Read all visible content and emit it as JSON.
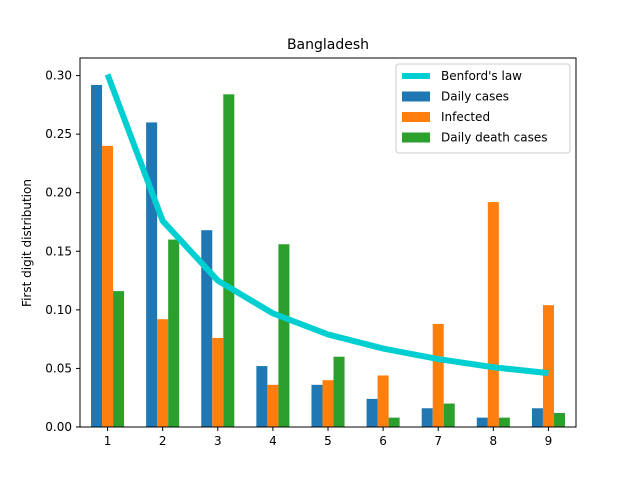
{
  "chart_data": {
    "type": "bar",
    "title": "Bangladesh",
    "xlabel": "",
    "ylabel": "First digit distribution",
    "categories": [
      "1",
      "2",
      "3",
      "4",
      "5",
      "6",
      "7",
      "8",
      "9"
    ],
    "xlim": [
      0.5,
      9.5
    ],
    "ylim": [
      0,
      0.315
    ],
    "yticks": [
      "0.00",
      "0.05",
      "0.10",
      "0.15",
      "0.20",
      "0.25",
      "0.30"
    ],
    "legend_position": "top-right",
    "series": [
      {
        "name": "Benford's law",
        "kind": "line",
        "color": "#00cfd1",
        "values": [
          0.301,
          0.176,
          0.125,
          0.097,
          0.079,
          0.067,
          0.058,
          0.051,
          0.046
        ]
      },
      {
        "name": "Daily cases",
        "kind": "bar",
        "color": "#1f77b4",
        "values": [
          0.292,
          0.26,
          0.168,
          0.052,
          0.036,
          0.024,
          0.016,
          0.008,
          0.016
        ]
      },
      {
        "name": "Infected",
        "kind": "bar",
        "color": "#ff7f0e",
        "values": [
          0.24,
          0.092,
          0.076,
          0.036,
          0.04,
          0.044,
          0.088,
          0.192,
          0.104
        ]
      },
      {
        "name": "Daily death cases",
        "kind": "bar",
        "color": "#2ca02c",
        "values": [
          0.116,
          0.16,
          0.284,
          0.156,
          0.06,
          0.008,
          0.02,
          0.008,
          0.012
        ]
      }
    ]
  }
}
